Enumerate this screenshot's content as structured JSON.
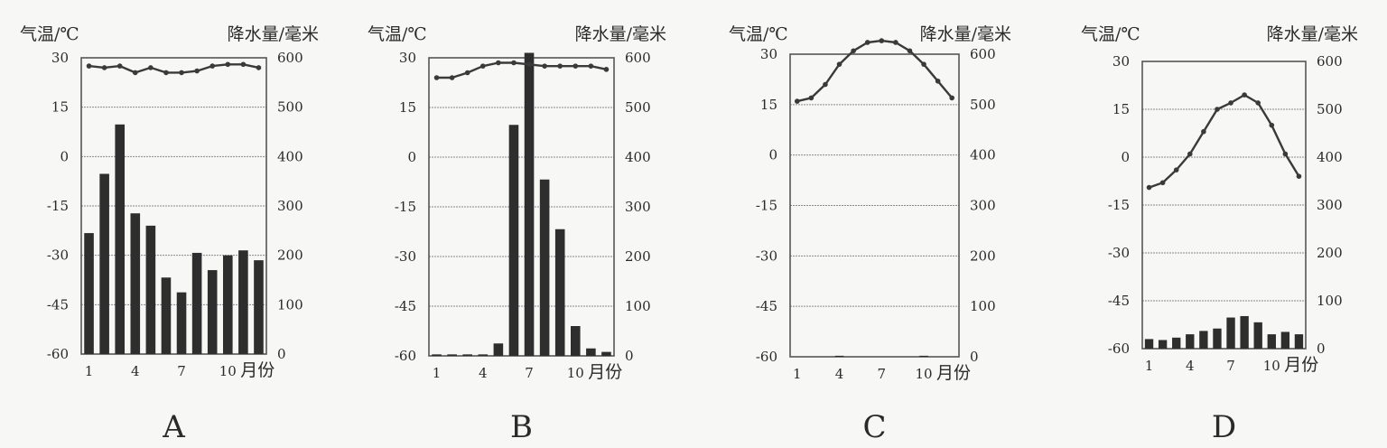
{
  "colors": {
    "bar": "#2e2e2e",
    "line": "#3a3a3a",
    "frame": "#555555",
    "grid": "#8a8a8a",
    "text": "#2a2a2a"
  },
  "chart_data": [
    {
      "type": "bar+line",
      "label": "A",
      "temp_axis_title": "气温/℃",
      "precip_axis_title": "降水量/毫米",
      "x_unit": "月份",
      "temp_ticks": [
        "30",
        "15",
        "0",
        "-15",
        "-30",
        "-45",
        "-60"
      ],
      "precip_ticks": [
        "600",
        "500",
        "400",
        "300",
        "200",
        "100",
        "0"
      ],
      "x_ticks": [
        {
          "month": 1,
          "label": "1"
        },
        {
          "month": 4,
          "label": "4"
        },
        {
          "month": 7,
          "label": "7"
        },
        {
          "month": 10,
          "label": "10"
        }
      ],
      "temp_range": [
        -60,
        30
      ],
      "precip_range": [
        0,
        600
      ],
      "grid": true,
      "months": [
        1,
        2,
        3,
        4,
        5,
        6,
        7,
        8,
        9,
        10,
        11,
        12
      ],
      "temperature": [
        27.5,
        27,
        27.5,
        25.5,
        27,
        25.5,
        25.5,
        26,
        27.5,
        28,
        28,
        27
      ],
      "precipitation": [
        245,
        365,
        465,
        285,
        260,
        155,
        125,
        205,
        170,
        200,
        210,
        190
      ]
    },
    {
      "type": "bar+line",
      "label": "B",
      "temp_axis_title": "气温/℃",
      "precip_axis_title": "降水量/毫米",
      "x_unit": "月份",
      "temp_ticks": [
        "30",
        "15",
        "0",
        "-15",
        "-30",
        "-45",
        "-60"
      ],
      "precip_ticks": [
        "600",
        "500",
        "400",
        "300",
        "200",
        "100",
        "0"
      ],
      "x_ticks": [
        {
          "month": 1,
          "label": "1"
        },
        {
          "month": 4,
          "label": "4"
        },
        {
          "month": 7,
          "label": "7"
        },
        {
          "month": 10,
          "label": "10"
        }
      ],
      "temp_range": [
        -60,
        30
      ],
      "precip_range": [
        0,
        600
      ],
      "grid": true,
      "months": [
        1,
        2,
        3,
        4,
        5,
        6,
        7,
        8,
        9,
        10,
        11,
        12
      ],
      "temperature": [
        24,
        24,
        25.5,
        27.5,
        28.5,
        28.5,
        28,
        27.5,
        27.5,
        27.5,
        27.5,
        26.5
      ],
      "precipitation": [
        3,
        3,
        3,
        3,
        25,
        465,
        610,
        355,
        255,
        60,
        15,
        8
      ]
    },
    {
      "type": "bar+line",
      "label": "C",
      "temp_axis_title": "气温/℃",
      "precip_axis_title": "降水量/毫米",
      "x_unit": "月份",
      "temp_ticks": [
        "30",
        "15",
        "0",
        "-15",
        "-30",
        "-45",
        "-60"
      ],
      "precip_ticks": [
        "600",
        "500",
        "400",
        "300",
        "200",
        "100",
        "0"
      ],
      "x_ticks": [
        {
          "month": 1,
          "label": "1"
        },
        {
          "month": 4,
          "label": "4"
        },
        {
          "month": 7,
          "label": "7"
        },
        {
          "month": 10,
          "label": "10"
        }
      ],
      "temp_range": [
        -60,
        30
      ],
      "precip_range": [
        0,
        600
      ],
      "grid": true,
      "months": [
        1,
        2,
        3,
        4,
        5,
        6,
        7,
        8,
        9,
        10,
        11,
        12
      ],
      "temperature": [
        16,
        17,
        21,
        27,
        31,
        33.5,
        34,
        33.5,
        31,
        27,
        22,
        17
      ],
      "precipitation": [
        0,
        0,
        0,
        2,
        0,
        0,
        0,
        0,
        0,
        2,
        0,
        0
      ]
    },
    {
      "type": "bar+line",
      "label": "D",
      "temp_axis_title": "气温/℃",
      "precip_axis_title": "降水量/毫米",
      "x_unit": "月份",
      "temp_ticks": [
        "30",
        "15",
        "0",
        "-15",
        "-30",
        "-45",
        "-60"
      ],
      "precip_ticks": [
        "600",
        "500",
        "400",
        "300",
        "200",
        "100",
        "0"
      ],
      "x_ticks": [
        {
          "month": 1,
          "label": "1"
        },
        {
          "month": 4,
          "label": "4"
        },
        {
          "month": 7,
          "label": "7"
        },
        {
          "month": 10,
          "label": "10"
        }
      ],
      "temp_range": [
        -60,
        30
      ],
      "precip_range": [
        0,
        600
      ],
      "grid": true,
      "months": [
        1,
        2,
        3,
        4,
        5,
        6,
        7,
        8,
        9,
        10,
        11,
        12
      ],
      "temperature": [
        -9.5,
        -8,
        -4,
        1,
        8,
        15,
        17,
        19.5,
        17,
        10,
        1,
        -6
      ],
      "precipitation": [
        20,
        18,
        23,
        30,
        37,
        42,
        65,
        68,
        55,
        30,
        35,
        30
      ]
    }
  ]
}
